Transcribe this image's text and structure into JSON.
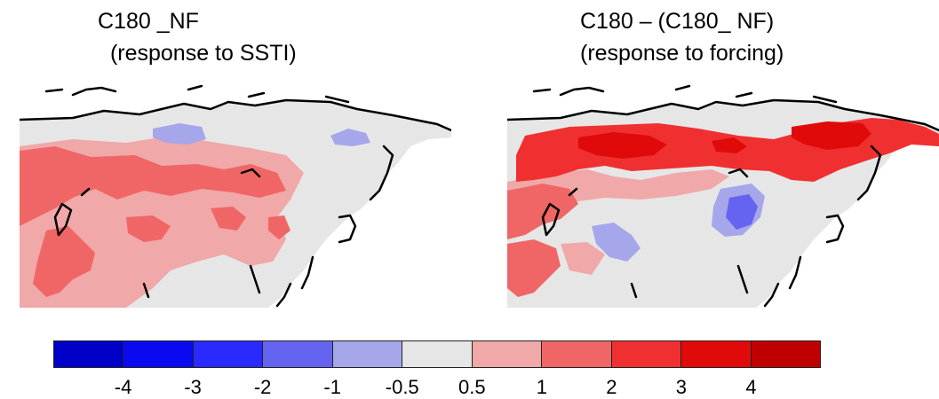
{
  "panels": [
    {
      "title_line1": "C180 _NF",
      "title_line2": " (response to SSTI)"
    },
    {
      "title_line1": "C180 – (C180_ NF)",
      "title_line2": "(response to forcing)"
    }
  ],
  "colorbar": {
    "colors": [
      "#0000c8",
      "#0a0af0",
      "#2a2aff",
      "#6464f0",
      "#a6a6ea",
      "#e6e6e6",
      "#f0a8a8",
      "#f06666",
      "#f03030",
      "#e00a0a",
      "#c00000"
    ],
    "tick_labels": [
      "-4",
      "-3",
      "-2",
      "-1",
      "-0.5",
      "0.5",
      "1",
      "2",
      "3",
      "4"
    ]
  },
  "legend_colors": {
    "land_neutral": "#e6e6e6",
    "warm_light": "#f0a8a8",
    "warm_medium": "#f06666",
    "warm_strong": "#f03030",
    "warm_max": "#e00a0a",
    "cool_light": "#a6a6ea",
    "cool_medium": "#6464f0",
    "coastline": "#000000"
  }
}
